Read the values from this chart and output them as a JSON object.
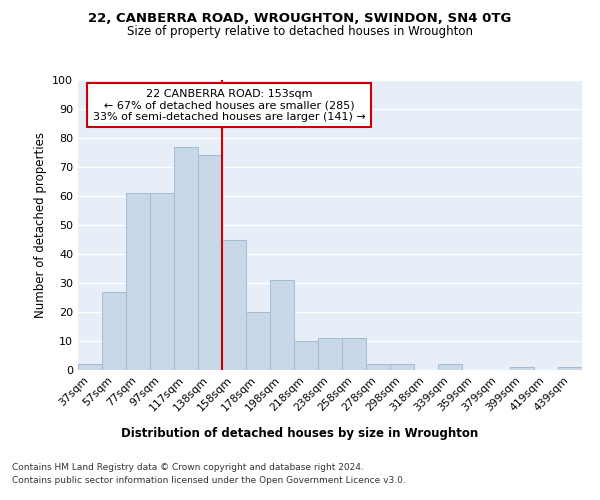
{
  "title1": "22, CANBERRA ROAD, WROUGHTON, SWINDON, SN4 0TG",
  "title2": "Size of property relative to detached houses in Wroughton",
  "xlabel": "Distribution of detached houses by size in Wroughton",
  "ylabel": "Number of detached properties",
  "categories": [
    "37sqm",
    "57sqm",
    "77sqm",
    "97sqm",
    "117sqm",
    "138sqm",
    "158sqm",
    "178sqm",
    "198sqm",
    "218sqm",
    "238sqm",
    "258sqm",
    "278sqm",
    "298sqm",
    "318sqm",
    "339sqm",
    "359sqm",
    "379sqm",
    "399sqm",
    "419sqm",
    "439sqm"
  ],
  "values": [
    2,
    27,
    61,
    61,
    77,
    74,
    45,
    20,
    31,
    10,
    11,
    11,
    2,
    2,
    0,
    2,
    0,
    0,
    1,
    0,
    1
  ],
  "bar_color": "#c8d8e8",
  "bar_edge_color": "#a0bcd0",
  "property_label": "22 CANBERRA ROAD: 153sqm",
  "annotation_line1": "← 67% of detached houses are smaller (285)",
  "annotation_line2": "33% of semi-detached houses are larger (141) →",
  "vline_color": "#cc0000",
  "box_color": "#cc0000",
  "ylim": [
    0,
    100
  ],
  "yticks": [
    0,
    10,
    20,
    30,
    40,
    50,
    60,
    70,
    80,
    90,
    100
  ],
  "bg_color": "#e8eef8",
  "grid_color": "#ffffff",
  "footnote1": "Contains HM Land Registry data © Crown copyright and database right 2024.",
  "footnote2": "Contains public sector information licensed under the Open Government Licence v3.0."
}
